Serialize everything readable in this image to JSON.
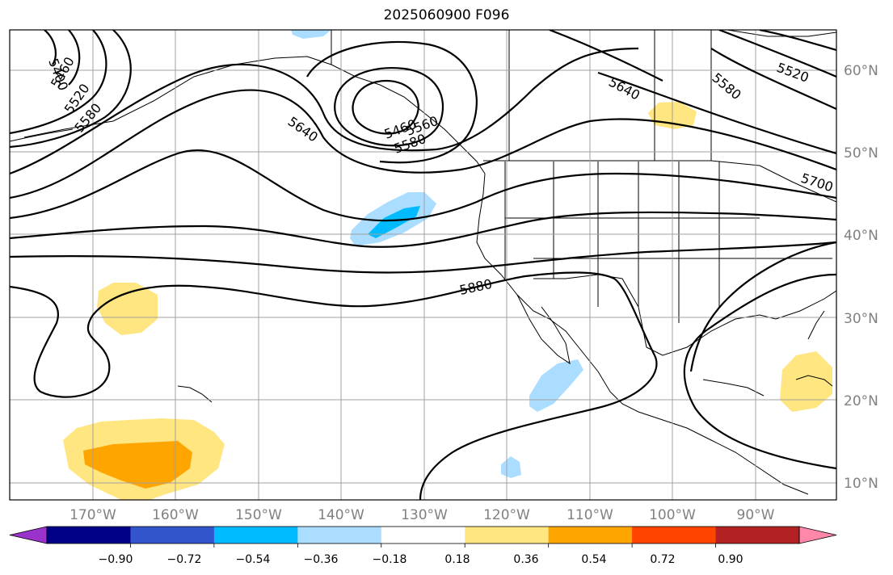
{
  "title": "2025060900 F096",
  "map": {
    "lat_labels": [
      "60°N",
      "50°N",
      "40°N",
      "30°N",
      "20°N",
      "10°N"
    ],
    "lon_labels": [
      "170°W",
      "160°W",
      "150°W",
      "140°W",
      "130°W",
      "120°W",
      "110°W",
      "100°W",
      "90°W"
    ],
    "contour_labels": [
      "5400",
      "5460",
      "5520",
      "5580",
      "5640",
      "5460",
      "5580",
      "5560",
      "5640",
      "5580",
      "5520",
      "5700",
      "5880"
    ],
    "contour_color": "#000000",
    "coastline_color": "#000000",
    "grid_color": "#a0a0a0"
  },
  "colorbar": {
    "ticks": [
      "−0.90",
      "−0.72",
      "−0.54",
      "−0.36",
      "−0.18",
      "0.18",
      "0.36",
      "0.54",
      "0.72",
      "0.90"
    ],
    "colors": [
      "#9933cc",
      "#000088",
      "#3355cc",
      "#00bbff",
      "#aaddff",
      "#ffffff",
      "#ffe680",
      "#ffa500",
      "#ff4400",
      "#b22222",
      "#ff88aa"
    ]
  }
}
